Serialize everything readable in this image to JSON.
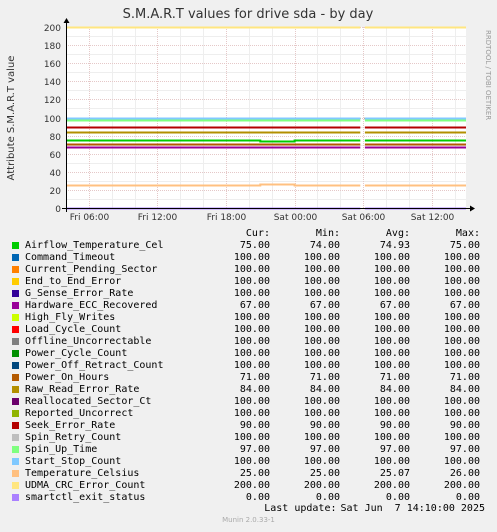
{
  "chart_data": {
    "type": "line",
    "title": "S.M.A.R.T values for drive sda - by day",
    "ylabel": "Attribute S.M.A.R.T value",
    "watermark": "RRDTOOL / TOBI OETIKER",
    "ylim": [
      0,
      200
    ],
    "yticks": [
      0,
      20,
      40,
      60,
      80,
      100,
      120,
      140,
      160,
      180,
      200
    ],
    "xticks": [
      "Fri 06:00",
      "Fri 12:00",
      "Fri 18:00",
      "Sat 00:00",
      "Sat 06:00",
      "Sat 12:00"
    ],
    "xrange_hours": [
      -2,
      33
    ],
    "gap_hours": [
      23.75,
      24.15
    ],
    "grid": true,
    "legend_headers": [
      "Cur:",
      "Min:",
      "Avg:",
      "Max:"
    ],
    "series": [
      {
        "name": "Airflow_Temperature_Cel",
        "color": "#00cc00",
        "cur": "75.00",
        "min": "74.00",
        "avg": "74.93",
        "max": "75.00",
        "points": [
          [
            -2,
            75
          ],
          [
            15,
            75
          ],
          [
            15,
            74
          ],
          [
            18,
            74
          ],
          [
            18,
            75
          ],
          [
            33,
            75
          ]
        ]
      },
      {
        "name": "Command_Timeout",
        "color": "#0066b3",
        "cur": "100.00",
        "min": "100.00",
        "avg": "100.00",
        "max": "100.00",
        "points": [
          [
            -2,
            100
          ],
          [
            33,
            100
          ]
        ]
      },
      {
        "name": "Current_Pending_Sector",
        "color": "#ff8000",
        "cur": "100.00",
        "min": "100.00",
        "avg": "100.00",
        "max": "100.00",
        "points": [
          [
            -2,
            100
          ],
          [
            33,
            100
          ]
        ]
      },
      {
        "name": "End_to_End_Error",
        "color": "#ffcc00",
        "cur": "100.00",
        "min": "100.00",
        "avg": "100.00",
        "max": "100.00",
        "points": [
          [
            -2,
            100
          ],
          [
            33,
            100
          ]
        ]
      },
      {
        "name": "G_Sense_Error_Rate",
        "color": "#330099",
        "cur": "100.00",
        "min": "100.00",
        "avg": "100.00",
        "max": "100.00",
        "points": [
          [
            -2,
            100
          ],
          [
            33,
            100
          ]
        ]
      },
      {
        "name": "Hardware_ECC_Recovered",
        "color": "#990099",
        "cur": "67.00",
        "min": "67.00",
        "avg": "67.00",
        "max": "67.00",
        "points": [
          [
            -2,
            67
          ],
          [
            33,
            67
          ]
        ]
      },
      {
        "name": "High_Fly_Writes",
        "color": "#ccff00",
        "cur": "100.00",
        "min": "100.00",
        "avg": "100.00",
        "max": "100.00",
        "points": [
          [
            -2,
            100
          ],
          [
            33,
            100
          ]
        ]
      },
      {
        "name": "Load_Cycle_Count",
        "color": "#ff0000",
        "cur": "100.00",
        "min": "100.00",
        "avg": "100.00",
        "max": "100.00",
        "points": [
          [
            -2,
            100
          ],
          [
            33,
            100
          ]
        ]
      },
      {
        "name": "Offline_Uncorrectable",
        "color": "#808080",
        "cur": "100.00",
        "min": "100.00",
        "avg": "100.00",
        "max": "100.00",
        "points": [
          [
            -2,
            100
          ],
          [
            33,
            100
          ]
        ]
      },
      {
        "name": "Power_Cycle_Count",
        "color": "#008f00",
        "cur": "100.00",
        "min": "100.00",
        "avg": "100.00",
        "max": "100.00",
        "points": [
          [
            -2,
            100
          ],
          [
            33,
            100
          ]
        ]
      },
      {
        "name": "Power_Off_Retract_Count",
        "color": "#00487d",
        "cur": "100.00",
        "min": "100.00",
        "avg": "100.00",
        "max": "100.00",
        "points": [
          [
            -2,
            100
          ],
          [
            33,
            100
          ]
        ]
      },
      {
        "name": "Power_On_Hours",
        "color": "#b35a00",
        "cur": "71.00",
        "min": "71.00",
        "avg": "71.00",
        "max": "71.00",
        "points": [
          [
            -2,
            71
          ],
          [
            33,
            71
          ]
        ]
      },
      {
        "name": "Raw_Read_Error_Rate",
        "color": "#b38f00",
        "cur": "84.00",
        "min": "84.00",
        "avg": "84.00",
        "max": "84.00",
        "points": [
          [
            -2,
            84
          ],
          [
            33,
            84
          ]
        ]
      },
      {
        "name": "Reallocated_Sector_Ct",
        "color": "#6b006b",
        "cur": "100.00",
        "min": "100.00",
        "avg": "100.00",
        "max": "100.00",
        "points": [
          [
            -2,
            100
          ],
          [
            33,
            100
          ]
        ]
      },
      {
        "name": "Reported_Uncorrect",
        "color": "#8fb300",
        "cur": "100.00",
        "min": "100.00",
        "avg": "100.00",
        "max": "100.00",
        "points": [
          [
            -2,
            100
          ],
          [
            33,
            100
          ]
        ]
      },
      {
        "name": "Seek_Error_Rate",
        "color": "#b30000",
        "cur": "90.00",
        "min": "90.00",
        "avg": "90.00",
        "max": "90.00",
        "points": [
          [
            -2,
            90
          ],
          [
            33,
            90
          ]
        ]
      },
      {
        "name": "Spin_Retry_Count",
        "color": "#bebebe",
        "cur": "100.00",
        "min": "100.00",
        "avg": "100.00",
        "max": "100.00",
        "points": [
          [
            -2,
            100
          ],
          [
            33,
            100
          ]
        ]
      },
      {
        "name": "Spin_Up_Time",
        "color": "#80ff80",
        "cur": "97.00",
        "min": "97.00",
        "avg": "97.00",
        "max": "97.00",
        "points": [
          [
            -2,
            97
          ],
          [
            33,
            97
          ]
        ]
      },
      {
        "name": "Start_Stop_Count",
        "color": "#80c9ff",
        "cur": "100.00",
        "min": "100.00",
        "avg": "100.00",
        "max": "100.00",
        "points": [
          [
            -2,
            100
          ],
          [
            33,
            100
          ]
        ]
      },
      {
        "name": "Temperature_Celsius",
        "color": "#ffc080",
        "cur": "25.00",
        "min": "25.00",
        "avg": "25.07",
        "max": "26.00",
        "points": [
          [
            -2,
            25
          ],
          [
            15,
            25
          ],
          [
            15,
            26
          ],
          [
            18,
            26
          ],
          [
            18,
            25
          ],
          [
            33,
            25
          ]
        ]
      },
      {
        "name": "UDMA_CRC_Error_Count",
        "color": "#ffe680",
        "cur": "200.00",
        "min": "200.00",
        "avg": "200.00",
        "max": "200.00",
        "points": [
          [
            -2,
            200
          ],
          [
            33,
            200
          ]
        ]
      },
      {
        "name": "smartctl_exit_status",
        "color": "#aa80ff",
        "cur": "0.00",
        "min": "0.00",
        "avg": "0.00",
        "max": "0.00",
        "points": [
          [
            -2,
            0
          ],
          [
            33,
            0
          ]
        ]
      }
    ]
  },
  "footer": {
    "last_update_label": "Last update:",
    "last_update_value": "Sat Jun  7 14:10:00 2025",
    "version": "Munin 2.0.33-1"
  }
}
